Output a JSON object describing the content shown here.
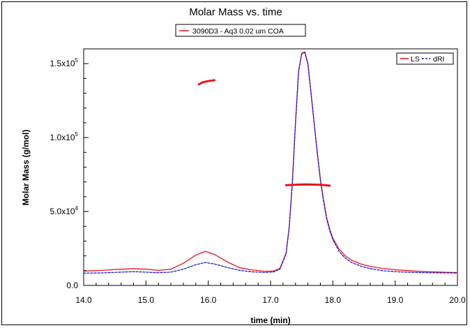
{
  "chart_data": {
    "type": "line",
    "title": "Molar Mass vs. time",
    "sample_legend": "3090D3 - Aq3  0.02 um COA",
    "xlabel": "time (min)",
    "ylabel": "Molar Mass (g/mol)",
    "xlim": [
      14.0,
      20.0
    ],
    "ylim": [
      0,
      160000
    ],
    "x_ticks": [
      {
        "value": 14.0,
        "label": "14.0"
      },
      {
        "value": 15.0,
        "label": "15.0"
      },
      {
        "value": 16.0,
        "label": "16.0"
      },
      {
        "value": 17.0,
        "label": "17.0"
      },
      {
        "value": 18.0,
        "label": "18.0"
      },
      {
        "value": 19.0,
        "label": "19.0"
      },
      {
        "value": 20.0,
        "label": "20.0"
      }
    ],
    "y_ticks": [
      {
        "value": 0,
        "mantissa": "0.0",
        "exp": ""
      },
      {
        "value": 50000,
        "mantissa": "5.0x10",
        "exp": "4"
      },
      {
        "value": 100000,
        "mantissa": "1.0x10",
        "exp": "5"
      },
      {
        "value": 150000,
        "mantissa": "1.5x10",
        "exp": "5"
      }
    ],
    "legend": {
      "placement": "top-right",
      "entries": [
        {
          "name": "LS",
          "color": "#e8141b",
          "dash": false
        },
        {
          "name": "dRI",
          "color": "#1a1adf",
          "dash": true
        }
      ]
    },
    "series": [
      {
        "name": "LS",
        "color": "#e8141b",
        "x": [
          14.0,
          14.3,
          14.6,
          14.8,
          15.0,
          15.2,
          15.4,
          15.6,
          15.8,
          15.95,
          16.1,
          16.3,
          16.5,
          16.7,
          16.9,
          17.05,
          17.15,
          17.25,
          17.3,
          17.35,
          17.4,
          17.45,
          17.5,
          17.55,
          17.6,
          17.65,
          17.7,
          17.75,
          17.8,
          17.85,
          17.9,
          17.95,
          18.0,
          18.1,
          18.2,
          18.3,
          18.45,
          18.6,
          18.8,
          19.0,
          19.2,
          19.5,
          19.8,
          20.0
        ],
        "y": [
          9700,
          10200,
          11000,
          11300,
          11000,
          10200,
          11000,
          15000,
          20500,
          23000,
          21000,
          16000,
          12000,
          10500,
          9600,
          9700,
          11500,
          22000,
          40000,
          70000,
          110000,
          145000,
          157000,
          158000,
          150000,
          130000,
          110000,
          90000,
          72000,
          58000,
          46000,
          38000,
          32000,
          24500,
          20000,
          17000,
          14500,
          12800,
          11500,
          10600,
          10000,
          9300,
          8900,
          8700
        ]
      },
      {
        "name": "dRI",
        "color": "#1a1adf",
        "x": [
          14.0,
          14.3,
          14.6,
          14.8,
          15.0,
          15.2,
          15.4,
          15.6,
          15.8,
          15.95,
          16.1,
          16.3,
          16.5,
          16.7,
          16.9,
          17.05,
          17.15,
          17.25,
          17.3,
          17.35,
          17.4,
          17.45,
          17.5,
          17.55,
          17.6,
          17.65,
          17.7,
          17.75,
          17.8,
          17.85,
          17.9,
          17.95,
          18.0,
          18.1,
          18.2,
          18.3,
          18.45,
          18.6,
          18.8,
          19.0,
          19.2,
          19.5,
          19.8,
          20.0
        ],
        "y": [
          8300,
          8500,
          9000,
          9300,
          9000,
          8600,
          9000,
          11000,
          14000,
          15500,
          14500,
          12200,
          10200,
          9200,
          8800,
          9100,
          11000,
          21500,
          39500,
          69500,
          109500,
          144500,
          156500,
          157500,
          149500,
          129500,
          109500,
          89500,
          71000,
          57000,
          45000,
          37000,
          31000,
          23000,
          18500,
          15500,
          13000,
          11300,
          10000,
          9300,
          8900,
          8600,
          8500,
          8400
        ]
      },
      {
        "name": "molar-mass-peak-1",
        "color": "#e8141b",
        "x": [
          15.85,
          15.9,
          15.95,
          16.0,
          16.05,
          16.1
        ],
        "y": [
          136000,
          137200,
          137800,
          138200,
          138500,
          138800
        ]
      },
      {
        "name": "molar-mass-peak-2",
        "color": "#e8141b",
        "x": [
          17.25,
          17.4,
          17.55,
          17.7,
          17.85,
          17.95
        ],
        "y": [
          67800,
          68100,
          68300,
          68200,
          67900,
          67500
        ]
      }
    ]
  }
}
